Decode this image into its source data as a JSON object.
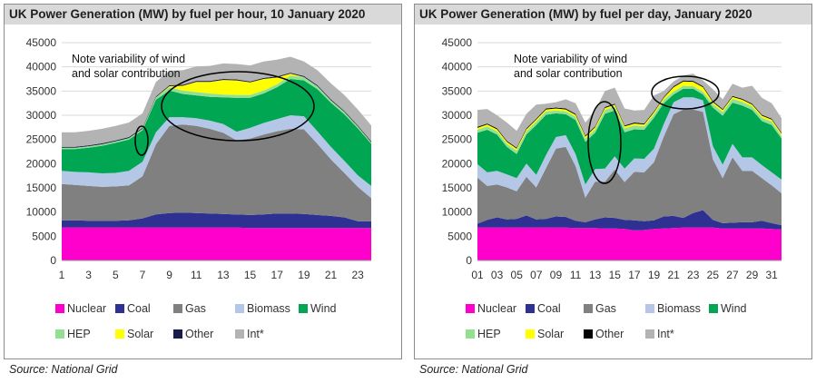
{
  "colors": {
    "Nuclear": "#ff00cc",
    "Coal": "#2e3192",
    "Gas": "#808080",
    "Biomass": "#b4c7e7",
    "Wind": "#00a651",
    "HEP": "#92e092",
    "Solar": "#ffff00",
    "Other": "#1a1a4a",
    "Int*": "#b3b3b3",
    "Other_daily": "#000000"
  },
  "chart_data": [
    {
      "type": "area",
      "title": "UK Power Generation (MW) by fuel per hour, 10 January 2020",
      "source": "Source: National Grid",
      "note": [
        "Note variability of wind",
        "and solar contribution"
      ],
      "stacked": true,
      "ylim": [
        0,
        45000
      ],
      "yticks": [
        "0",
        "5000",
        "10000",
        "15000",
        "20000",
        "25000",
        "30000",
        "35000",
        "40000",
        "45000"
      ],
      "x": [
        1,
        2,
        3,
        4,
        5,
        6,
        7,
        8,
        9,
        10,
        11,
        12,
        13,
        14,
        15,
        16,
        17,
        18,
        19,
        20,
        21,
        22,
        23,
        24
      ],
      "xticks": [
        "1",
        "3",
        "5",
        "7",
        "9",
        "11",
        "13",
        "15",
        "17",
        "19",
        "21",
        "23"
      ],
      "grid": true,
      "legend_position": "bottom",
      "series": [
        {
          "name": "Nuclear",
          "values": [
            6800,
            6800,
            6800,
            6800,
            6800,
            6800,
            6800,
            6800,
            6800,
            6800,
            6800,
            6800,
            6800,
            6800,
            6700,
            6700,
            6700,
            6700,
            6700,
            6700,
            6700,
            6700,
            6700,
            6700
          ]
        },
        {
          "name": "Coal",
          "values": [
            1500,
            1500,
            1400,
            1400,
            1400,
            1500,
            1900,
            2700,
            3000,
            3100,
            3000,
            2900,
            2800,
            2700,
            2700,
            2800,
            3000,
            3000,
            2900,
            2700,
            2500,
            2200,
            1400,
            1400
          ]
        },
        {
          "name": "Gas",
          "values": [
            7500,
            7300,
            7200,
            7000,
            7100,
            7200,
            8700,
            14500,
            18000,
            18200,
            18000,
            17500,
            16800,
            15300,
            15800,
            16500,
            17000,
            17500,
            17500,
            14700,
            11700,
            9200,
            7100,
            4800
          ]
        },
        {
          "name": "Biomass",
          "values": [
            2700,
            2700,
            2800,
            2800,
            2800,
            3000,
            3000,
            2500,
            1800,
            1500,
            1600,
            1700,
            1800,
            1800,
            2200,
            2400,
            2500,
            2800,
            2700,
            2600,
            2600,
            2500,
            2400,
            2500
          ]
        },
        {
          "name": "Wind",
          "values": [
            4500,
            4700,
            5100,
            5700,
            6200,
            6500,
            6500,
            6700,
            5500,
            4800,
            4700,
            4900,
            5500,
            7000,
            6200,
            6100,
            6600,
            7500,
            7400,
            8700,
            9100,
            9600,
            9700,
            8700
          ]
        },
        {
          "name": "HEP",
          "values": [
            300,
            300,
            300,
            300,
            300,
            300,
            300,
            500,
            700,
            700,
            700,
            700,
            600,
            600,
            600,
            600,
            600,
            700,
            700,
            600,
            500,
            500,
            400,
            300
          ]
        },
        {
          "name": "Solar",
          "values": [
            0,
            0,
            0,
            0,
            0,
            0,
            0,
            0,
            200,
            1000,
            2100,
            2400,
            3000,
            3000,
            2600,
            2400,
            1400,
            400,
            0,
            0,
            0,
            0,
            0,
            0
          ]
        },
        {
          "name": "Other",
          "values": [
            200,
            200,
            200,
            200,
            200,
            200,
            200,
            200,
            200,
            200,
            200,
            200,
            200,
            200,
            200,
            200,
            200,
            200,
            200,
            200,
            200,
            200,
            200,
            200
          ]
        },
        {
          "name": "Int*",
          "values": [
            3000,
            3000,
            3000,
            3000,
            3000,
            3000,
            3000,
            3000,
            3000,
            3000,
            3000,
            3100,
            3200,
            3200,
            3300,
            3400,
            3500,
            3300,
            3000,
            3100,
            3300,
            3300,
            3300,
            3300
          ]
        }
      ],
      "legend": [
        "Nuclear",
        "Coal",
        "Gas",
        "Biomass",
        "Wind",
        "HEP",
        "Solar",
        "Other",
        "Int*"
      ]
    },
    {
      "type": "area",
      "title": "UK Power Generation (MW) by fuel per day, January 2020",
      "source": "Source: National Grid",
      "note": [
        "Note variability of wind",
        "and solar contribution"
      ],
      "stacked": true,
      "ylim": [
        0,
        45000
      ],
      "yticks": [
        "0",
        "5000",
        "10000",
        "15000",
        "20000",
        "25000",
        "30000",
        "35000",
        "40000",
        "45000"
      ],
      "x": [
        "01",
        "02",
        "03",
        "04",
        "05",
        "06",
        "07",
        "08",
        "09",
        "10",
        "11",
        "12",
        "13",
        "14",
        "15",
        "16",
        "17",
        "18",
        "19",
        "20",
        "21",
        "22",
        "23",
        "24",
        "25",
        "26",
        "27",
        "28",
        "29",
        "30",
        "31",
        "32"
      ],
      "xticks": [
        "01",
        "03",
        "05",
        "07",
        "09",
        "11",
        "13",
        "15",
        "17",
        "19",
        "21",
        "23",
        "25",
        "27",
        "29",
        "31"
      ],
      "grid": true,
      "legend_position": "bottom",
      "series": [
        {
          "name": "Nuclear",
          "values": [
            6800,
            6800,
            6800,
            6800,
            6800,
            6800,
            6800,
            6800,
            6800,
            6800,
            6700,
            6700,
            6700,
            6600,
            6600,
            6500,
            6200,
            6300,
            6500,
            6600,
            6700,
            6800,
            6800,
            6800,
            6800,
            6600,
            6600,
            6600,
            6600,
            6600,
            6500,
            6400
          ]
        },
        {
          "name": "Coal",
          "values": [
            800,
            1600,
            2100,
            1700,
            1800,
            2500,
            1700,
            1800,
            2300,
            2200,
            1500,
            1200,
            1800,
            2300,
            2200,
            1900,
            2100,
            1800,
            1800,
            2500,
            2500,
            2000,
            3000,
            3600,
            1600,
            1100,
            1200,
            1300,
            1300,
            1600,
            1200,
            900
          ]
        },
        {
          "name": "Gas",
          "values": [
            9500,
            7000,
            6800,
            6600,
            5700,
            8000,
            6600,
            10500,
            14000,
            14500,
            11300,
            5100,
            7800,
            7400,
            10000,
            7800,
            10000,
            10100,
            12000,
            16500,
            21000,
            22400,
            21400,
            20300,
            12500,
            9300,
            13500,
            10600,
            10600,
            8800,
            7800,
            6600
          ]
        },
        {
          "name": "Biomass",
          "values": [
            2800,
            2800,
            2800,
            2700,
            2700,
            2700,
            2600,
            2700,
            2400,
            2400,
            2500,
            2700,
            2600,
            2700,
            2700,
            2800,
            2800,
            2800,
            2800,
            2600,
            2500,
            2500,
            2500,
            2400,
            2700,
            2800,
            2800,
            2800,
            2800,
            2700,
            2700,
            2800
          ]
        },
        {
          "name": "Wind",
          "values": [
            6500,
            8800,
            7500,
            5700,
            5000,
            6000,
            10300,
            8300,
            4900,
            4300,
            7000,
            8800,
            7500,
            11300,
            9500,
            7500,
            6000,
            6000,
            6400,
            4300,
            1600,
            1800,
            1800,
            1200,
            8000,
            10100,
            8500,
            10700,
            9800,
            9100,
            9800,
            8500
          ]
        },
        {
          "name": "HEP",
          "values": [
            600,
            700,
            700,
            600,
            700,
            700,
            700,
            700,
            600,
            600,
            700,
            700,
            700,
            800,
            800,
            800,
            800,
            700,
            700,
            700,
            600,
            600,
            500,
            600,
            700,
            800,
            800,
            800,
            700,
            700,
            700,
            600
          ]
        },
        {
          "name": "Solar",
          "values": [
            400,
            400,
            400,
            400,
            400,
            400,
            400,
            400,
            400,
            400,
            400,
            400,
            400,
            400,
            400,
            400,
            400,
            400,
            400,
            400,
            900,
            900,
            900,
            900,
            400,
            400,
            400,
            400,
            400,
            400,
            400,
            400
          ]
        },
        {
          "name": "Other",
          "values": [
            200,
            200,
            200,
            200,
            200,
            200,
            200,
            200,
            200,
            200,
            200,
            200,
            200,
            200,
            200,
            200,
            200,
            200,
            200,
            200,
            200,
            200,
            200,
            200,
            200,
            200,
            200,
            200,
            200,
            200,
            200,
            200
          ]
        },
        {
          "name": "Int*",
          "values": [
            3500,
            3000,
            2700,
            3800,
            3500,
            3000,
            2900,
            1000,
            1100,
            1900,
            2200,
            2700,
            3300,
            3300,
            3300,
            3500,
            2500,
            2800,
            3300,
            1200,
            1000,
            1000,
            1500,
            1200,
            2500,
            2000,
            2500,
            2300,
            3700,
            3500,
            3200,
            3000
          ]
        }
      ],
      "legend": [
        "Nuclear",
        "Coal",
        "Gas",
        "Biomass",
        "Wind",
        "HEP",
        "Solar",
        "Other",
        "Int*"
      ]
    }
  ]
}
